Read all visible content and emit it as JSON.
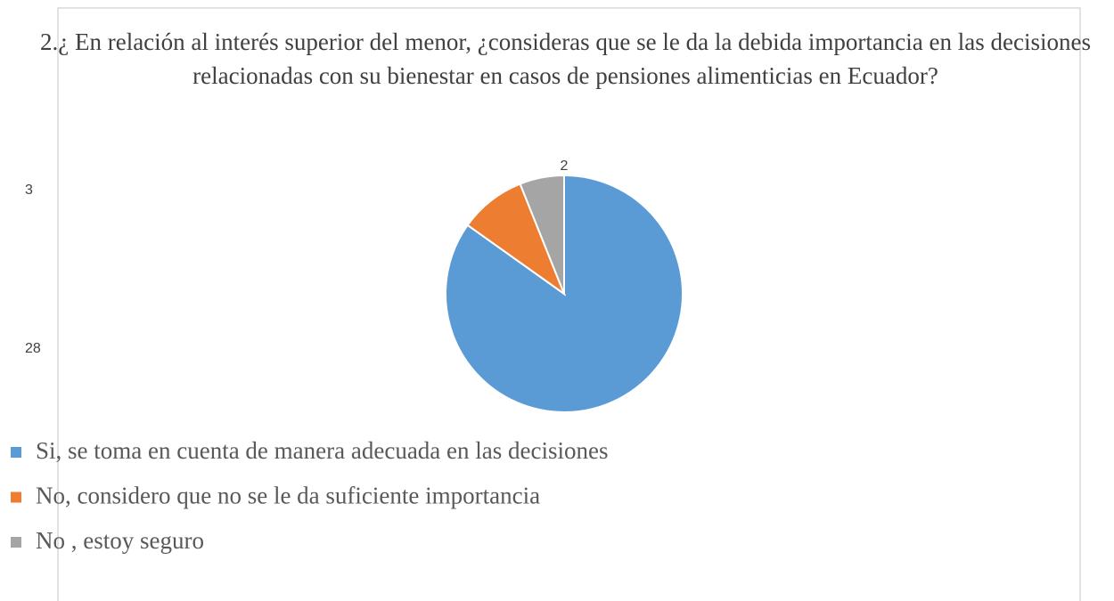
{
  "chart_data": {
    "type": "pie",
    "title": "2.¿ En relación al interés superior del menor, ¿consideras que se le da la debida importancia en las decisiones relacionadas con su bienestar en casos de pensiones alimenticias en Ecuador?",
    "categories": [
      "Si, se toma en cuenta de manera adecuada en las decisiones",
      "No, considero que no se le da suficiente importancia",
      "No , estoy seguro"
    ],
    "values": [
      28,
      3,
      2
    ],
    "colors": [
      "#5b9bd5",
      "#ed7d31",
      "#a5a5a5"
    ],
    "legend": "bottom-left"
  }
}
